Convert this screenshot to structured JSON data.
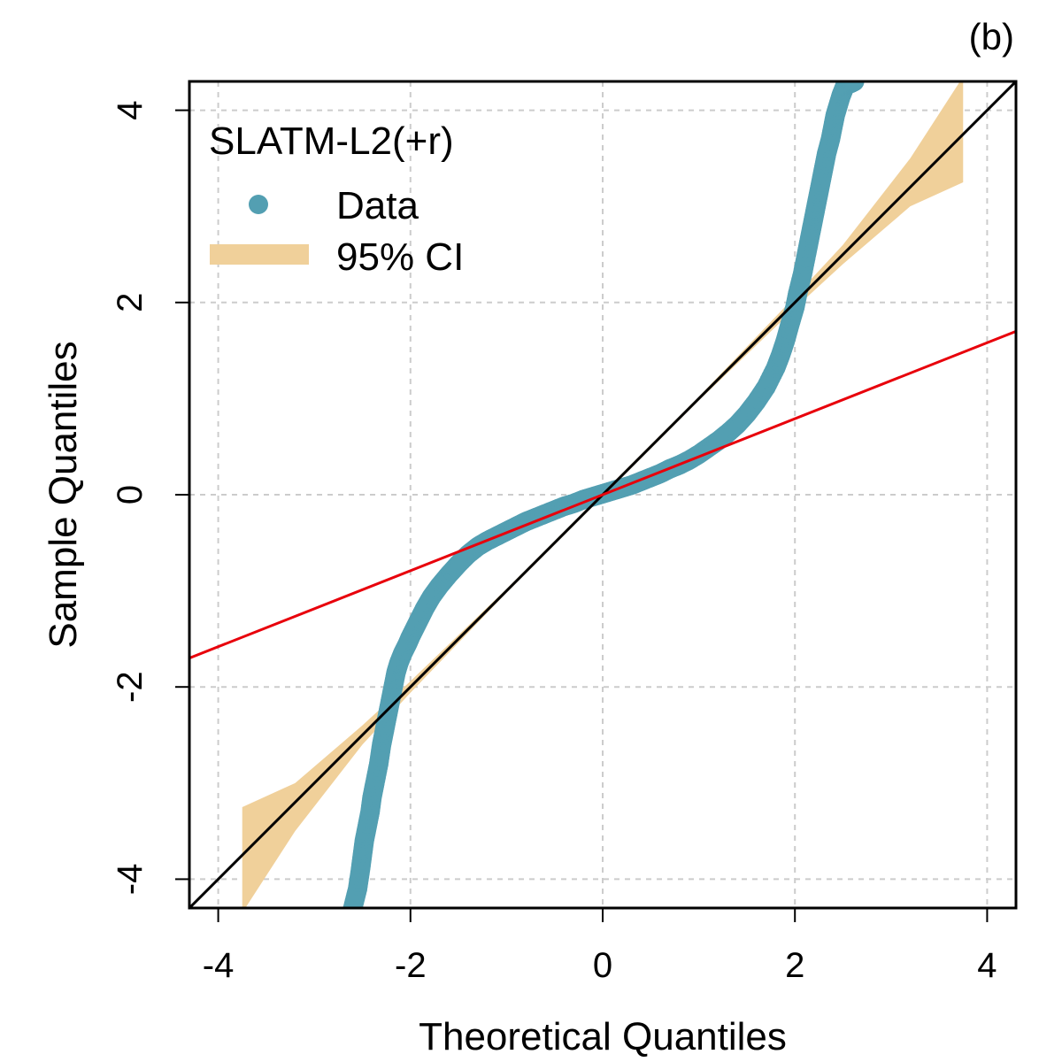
{
  "panel_label": "(b)",
  "chart_data": {
    "type": "scatter",
    "title": "",
    "xlabel": "Theoretical Quantiles",
    "ylabel": "Sample Quantiles",
    "xlim": [
      -4.3,
      4.3
    ],
    "ylim": [
      -4.3,
      4.3
    ],
    "x_ticks": [
      -4,
      -2,
      0,
      2,
      4
    ],
    "y_ticks": [
      -4,
      -2,
      0,
      2,
      4
    ],
    "x_tick_labels": [
      "-4",
      "-2",
      "0",
      "2",
      "4"
    ],
    "y_tick_labels": [
      "-4",
      "-2",
      "0",
      "2",
      "4"
    ],
    "grid": true,
    "legend": {
      "title": "SLATM-L2(+r)",
      "position": "top-left",
      "entries": [
        {
          "label": "Data",
          "kind": "point",
          "color": "#539fb2"
        },
        {
          "label": "95% CI",
          "kind": "band",
          "color": "#f0d09a"
        }
      ]
    },
    "series": [
      {
        "name": "Data",
        "kind": "points",
        "color": "#539fb2",
        "x": [
          -2.6,
          -2.55,
          -2.52,
          -2.5,
          -2.48,
          -2.45,
          -2.42,
          -2.4,
          -2.37,
          -2.33,
          -2.3,
          -2.27,
          -2.24,
          -2.21,
          -2.18,
          -2.15,
          -2.12,
          -2.08,
          -2.03,
          -2.0,
          -1.95,
          -1.9,
          -1.85,
          -1.78,
          -1.7,
          -1.6,
          -1.5,
          -1.4,
          -1.3,
          -1.2,
          -1.1,
          -1.0,
          -0.9,
          -0.8,
          -0.7,
          -0.6,
          -0.5,
          -0.4,
          -0.3,
          -0.2,
          -0.1,
          0.0,
          0.1,
          0.2,
          0.3,
          0.4,
          0.5,
          0.6,
          0.7,
          0.8,
          0.9,
          1.0,
          1.1,
          1.2,
          1.3,
          1.4,
          1.5,
          1.6,
          1.7,
          1.8,
          1.85,
          1.9,
          1.95,
          2.0,
          2.03,
          2.08,
          2.12,
          2.15,
          2.18,
          2.21,
          2.24,
          2.27,
          2.3,
          2.33,
          2.37,
          2.4,
          2.42,
          2.45,
          2.48,
          2.5,
          2.52,
          2.55,
          2.58,
          2.6,
          2.62
        ],
        "y": [
          -4.3,
          -4.1,
          -3.9,
          -3.75,
          -3.6,
          -3.45,
          -3.3,
          -3.15,
          -3.0,
          -2.8,
          -2.6,
          -2.45,
          -2.3,
          -2.15,
          -2.0,
          -1.85,
          -1.75,
          -1.65,
          -1.55,
          -1.48,
          -1.38,
          -1.28,
          -1.18,
          -1.06,
          -0.95,
          -0.83,
          -0.72,
          -0.62,
          -0.54,
          -0.48,
          -0.43,
          -0.38,
          -0.33,
          -0.28,
          -0.24,
          -0.2,
          -0.16,
          -0.12,
          -0.09,
          -0.05,
          -0.02,
          0.01,
          0.04,
          0.07,
          0.1,
          0.14,
          0.18,
          0.22,
          0.27,
          0.31,
          0.36,
          0.42,
          0.49,
          0.56,
          0.64,
          0.73,
          0.84,
          0.97,
          1.12,
          1.32,
          1.45,
          1.6,
          1.78,
          1.95,
          2.1,
          2.3,
          2.5,
          2.65,
          2.8,
          2.95,
          3.1,
          3.25,
          3.4,
          3.55,
          3.7,
          3.85,
          3.95,
          4.05,
          4.15,
          4.2,
          4.25,
          4.27,
          4.28,
          4.29,
          4.3
        ]
      },
      {
        "name": "95% CI",
        "kind": "band",
        "color": "#f0d09a",
        "x": [
          -3.75,
          -3.2,
          -2.5,
          -2.0,
          -1.0,
          0.0,
          1.0,
          2.0,
          2.5,
          3.2,
          3.75
        ],
        "lower": [
          -4.35,
          -3.5,
          -2.6,
          -2.06,
          -1.02,
          -0.02,
          0.98,
          1.94,
          2.4,
          3.0,
          3.25
        ],
        "upper": [
          -3.25,
          -3.0,
          -2.4,
          -1.94,
          -0.98,
          0.02,
          1.02,
          2.06,
          2.6,
          3.5,
          4.35
        ]
      },
      {
        "name": "identity line",
        "kind": "line",
        "color": "#000000",
        "x": [
          -4.3,
          4.3
        ],
        "y": [
          -4.3,
          4.3
        ]
      },
      {
        "name": "fit line",
        "kind": "line",
        "color": "#e8000b",
        "x": [
          -4.3,
          4.3
        ],
        "y": [
          -1.7,
          1.7
        ]
      }
    ]
  }
}
